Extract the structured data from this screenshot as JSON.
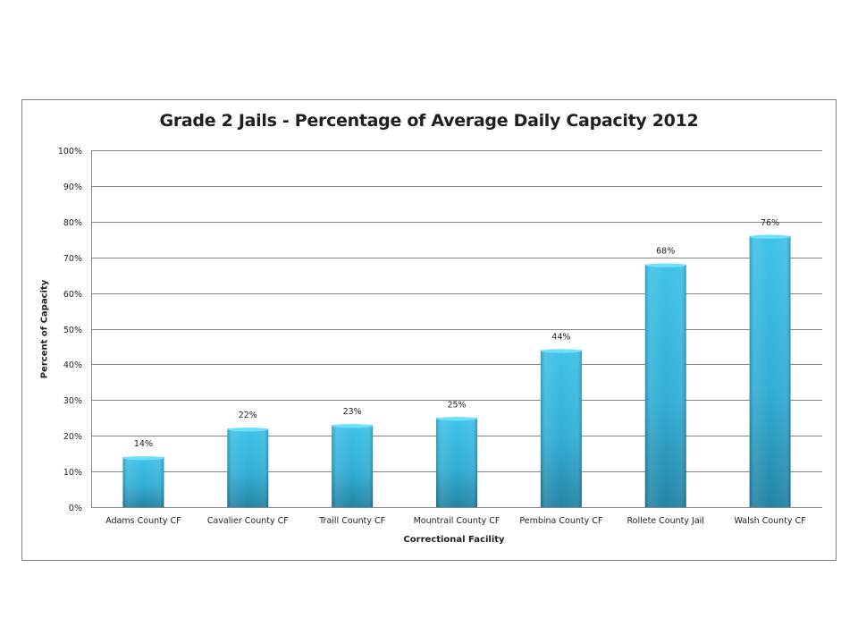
{
  "chart_data": {
    "type": "bar",
    "title": "Grade 2 Jails - Percentage of Average Daily Capacity 2012",
    "xlabel": "Correctional Facility",
    "ylabel": "Percent of Capacity",
    "categories": [
      "Adams County CF",
      "Cavalier County CF",
      "Traill County CF",
      "Mountrail County CF",
      "Pembina County CF",
      "Rollete County Jail",
      "Walsh County CF"
    ],
    "values": [
      14,
      22,
      23,
      25,
      44,
      68,
      76
    ],
    "data_labels": [
      "14%",
      "22%",
      "23%",
      "25%",
      "44%",
      "68%",
      "76%"
    ],
    "ylim": [
      0,
      100
    ],
    "yticks": [
      0,
      10,
      20,
      30,
      40,
      50,
      60,
      70,
      80,
      90,
      100
    ],
    "ytick_labels": [
      "0%",
      "10%",
      "20%",
      "30%",
      "40%",
      "50%",
      "60%",
      "70%",
      "80%",
      "90%",
      "100%"
    ],
    "grid": true,
    "legend": "none",
    "colors": {
      "bar_top": "#3fc2e8",
      "bar_bottom": "#2384a4",
      "bar_cap": "#6fe0fb",
      "gridline": "#868686",
      "text": "#1f1f1f"
    }
  }
}
